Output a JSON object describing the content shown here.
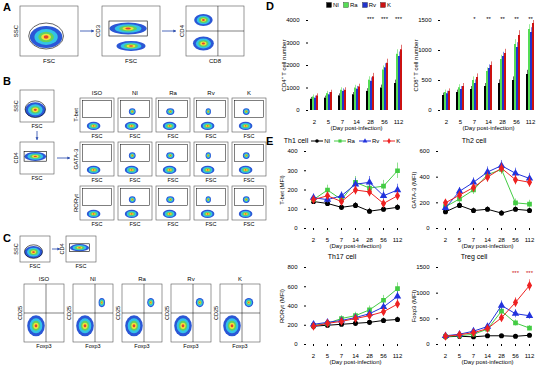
{
  "chart_data": [
    {
      "type": "bar",
      "panel": "D",
      "legend": "top",
      "xlabel": "(Day post-infection)",
      "ylabel": "CD4⁺ T cell number",
      "categories": [
        2,
        5,
        7,
        14,
        28,
        56,
        112
      ],
      "ylim": [
        0,
        4000
      ],
      "yticks": [
        0,
        1000,
        2000,
        3000,
        4000
      ],
      "significance": [
        null,
        null,
        null,
        null,
        "***",
        "***",
        "***"
      ],
      "series": [
        {
          "name": "NI",
          "color": "#000000",
          "values": [
            500,
            550,
            650,
            700,
            850,
            1000,
            1200
          ],
          "errors": [
            80,
            90,
            90,
            100,
            120,
            130,
            150
          ]
        },
        {
          "name": "Ra",
          "color": "#55dd55",
          "values": [
            600,
            750,
            900,
            1000,
            1350,
            1800,
            2500
          ],
          "errors": [
            90,
            100,
            110,
            120,
            150,
            180,
            200
          ]
        },
        {
          "name": "Rv",
          "color": "#2233cc",
          "values": [
            550,
            700,
            850,
            950,
            1300,
            1900,
            2400
          ],
          "errors": [
            90,
            100,
            110,
            120,
            150,
            180,
            200
          ]
        },
        {
          "name": "K",
          "color": "#cc1111",
          "values": [
            650,
            800,
            900,
            1050,
            1500,
            2100,
            2700
          ],
          "errors": [
            90,
            100,
            110,
            120,
            150,
            180,
            200
          ]
        }
      ]
    },
    {
      "type": "bar",
      "xlabel": "(Day post-infection)",
      "ylabel": "CD8⁺ T cell number",
      "categories": [
        2,
        5,
        7,
        14,
        28,
        56,
        112
      ],
      "ylim": [
        0,
        1500
      ],
      "yticks": [
        0,
        500,
        1000,
        1500
      ],
      "significance": [
        null,
        null,
        "*",
        "**",
        "**",
        "**",
        "**"
      ],
      "series": [
        {
          "name": "NI",
          "color": "#000000",
          "values": [
            250,
            300,
            350,
            400,
            450,
            500,
            600
          ],
          "errors": [
            40,
            40,
            50,
            50,
            60,
            60,
            70
          ]
        },
        {
          "name": "Ra",
          "color": "#55dd55",
          "values": [
            300,
            380,
            500,
            650,
            850,
            1100,
            1350
          ],
          "errors": [
            40,
            50,
            60,
            60,
            70,
            80,
            80
          ]
        },
        {
          "name": "Rv",
          "color": "#2233cc",
          "values": [
            280,
            350,
            450,
            700,
            900,
            1050,
            1300
          ],
          "errors": [
            40,
            50,
            60,
            60,
            70,
            80,
            80
          ]
        },
        {
          "name": "K",
          "color": "#cc1111",
          "values": [
            320,
            400,
            550,
            750,
            950,
            1250,
            1450
          ],
          "errors": [
            40,
            50,
            60,
            60,
            70,
            80,
            50
          ]
        }
      ]
    },
    {
      "type": "line",
      "panel": "E",
      "legend": "top",
      "title": "Th1 cell",
      "xlabel": "(Day post-infection)",
      "ylabel": "T-bet (MFI)",
      "categories": [
        2,
        5,
        7,
        14,
        28,
        56,
        112
      ],
      "ylim": [
        0,
        400
      ],
      "yticks": [
        0,
        100,
        200,
        300,
        400
      ],
      "series": [
        {
          "name": "NI",
          "color": "#000000",
          "marker": "circle",
          "values": [
            140,
            130,
            110,
            120,
            90,
            100,
            110
          ],
          "errors": [
            15,
            15,
            15,
            15,
            15,
            15,
            15
          ]
        },
        {
          "name": "Ra",
          "color": "#44cc44",
          "marker": "square",
          "values": [
            150,
            200,
            150,
            240,
            210,
            220,
            300
          ],
          "errors": [
            20,
            25,
            20,
            30,
            25,
            30,
            40
          ]
        },
        {
          "name": "Rv",
          "color": "#2233dd",
          "marker": "triangle",
          "values": [
            160,
            150,
            170,
            230,
            240,
            170,
            200
          ],
          "errors": [
            20,
            20,
            20,
            30,
            30,
            25,
            30
          ]
        },
        {
          "name": "K",
          "color": "#ee2222",
          "marker": "diamond",
          "values": [
            150,
            170,
            140,
            200,
            190,
            130,
            170
          ],
          "errors": [
            20,
            20,
            20,
            25,
            25,
            20,
            25
          ]
        }
      ]
    },
    {
      "type": "line",
      "title": "Th2  cell",
      "xlabel": "(Day post-infection)",
      "ylabel": "GATA-3 (MFI)",
      "categories": [
        2,
        5,
        7,
        14,
        28,
        56,
        112
      ],
      "ylim": [
        0,
        600
      ],
      "yticks": [
        0,
        200,
        400,
        600
      ],
      "series": [
        {
          "name": "NI",
          "color": "#000000",
          "marker": "circle",
          "values": [
            130,
            180,
            140,
            150,
            120,
            150,
            140
          ],
          "errors": [
            20,
            20,
            20,
            20,
            20,
            20,
            20
          ]
        },
        {
          "name": "Ra",
          "color": "#44cc44",
          "marker": "square",
          "values": [
            170,
            230,
            300,
            420,
            460,
            200,
            190
          ],
          "errors": [
            25,
            30,
            35,
            40,
            40,
            30,
            30
          ]
        },
        {
          "name": "Rv",
          "color": "#2233dd",
          "marker": "triangle",
          "values": [
            160,
            290,
            360,
            440,
            490,
            430,
            390
          ],
          "errors": [
            25,
            30,
            35,
            40,
            40,
            40,
            40
          ]
        },
        {
          "name": "K",
          "color": "#ee2222",
          "marker": "diamond",
          "values": [
            200,
            260,
            320,
            400,
            470,
            380,
            360
          ],
          "errors": [
            25,
            30,
            35,
            40,
            40,
            40,
            40
          ]
        }
      ]
    },
    {
      "type": "line",
      "title": "Th17 cell",
      "xlabel": "(Day post-infection)",
      "ylabel": "RORγt (MFI)",
      "categories": [
        2,
        5,
        7,
        14,
        28,
        56,
        112
      ],
      "ylim": [
        0,
        800
      ],
      "yticks": [
        0,
        200,
        400,
        600,
        800
      ],
      "series": [
        {
          "name": "NI",
          "color": "#000000",
          "marker": "circle",
          "values": [
            190,
            200,
            210,
            220,
            230,
            250,
            260
          ],
          "errors": [
            20,
            20,
            20,
            20,
            25,
            25,
            25
          ]
        },
        {
          "name": "Ra",
          "color": "#44cc44",
          "marker": "square",
          "values": [
            200,
            220,
            270,
            300,
            360,
            460,
            580
          ],
          "errors": [
            25,
            25,
            30,
            35,
            40,
            50,
            60
          ]
        },
        {
          "name": "Rv",
          "color": "#2233dd",
          "marker": "triangle",
          "values": [
            210,
            230,
            250,
            280,
            320,
            390,
            500
          ],
          "errors": [
            25,
            25,
            30,
            35,
            40,
            45,
            50
          ]
        },
        {
          "name": "K",
          "color": "#ee2222",
          "marker": "diamond",
          "values": [
            190,
            220,
            240,
            270,
            300,
            340,
            420
          ],
          "errors": [
            25,
            25,
            30,
            30,
            35,
            40,
            45
          ]
        }
      ]
    },
    {
      "type": "line",
      "title": "Treg cell",
      "xlabel": "(Day post-infection)",
      "ylabel": "Foxp3 (MFI)",
      "categories": [
        2,
        5,
        7,
        14,
        28,
        56,
        112
      ],
      "ylim": [
        0,
        1500
      ],
      "yticks": [
        0,
        500,
        1000,
        1500
      ],
      "significance": [
        null,
        null,
        null,
        null,
        null,
        "***",
        "***"
      ],
      "series": [
        {
          "name": "NI",
          "color": "#000000",
          "marker": "circle",
          "values": [
            150,
            160,
            150,
            170,
            170,
            160,
            180
          ],
          "errors": [
            20,
            20,
            20,
            20,
            20,
            20,
            20
          ]
        },
        {
          "name": "Ra",
          "color": "#44cc44",
          "marker": "square",
          "values": [
            160,
            170,
            200,
            300,
            650,
            420,
            320
          ],
          "errors": [
            20,
            25,
            30,
            40,
            80,
            60,
            50
          ]
        },
        {
          "name": "Rv",
          "color": "#2233dd",
          "marker": "triangle",
          "values": [
            170,
            200,
            260,
            350,
            760,
            600,
            560
          ],
          "errors": [
            20,
            25,
            30,
            40,
            90,
            80,
            70
          ]
        },
        {
          "name": "K",
          "color": "#ee2222",
          "marker": "diamond",
          "values": [
            160,
            190,
            230,
            310,
            520,
            820,
            1150
          ],
          "errors": [
            20,
            25,
            30,
            40,
            70,
            90,
            110
          ]
        }
      ]
    }
  ],
  "flow_panels": [
    {
      "panel": "A",
      "plots": [
        {
          "x": "FSC",
          "y": "SSC"
        },
        {
          "x": "FSC",
          "y": "CD3"
        },
        {
          "x": "CD8",
          "y": "CD4"
        }
      ]
    },
    {
      "panel": "B",
      "gates": [
        {
          "x": "FSC",
          "y": "SSC"
        },
        {
          "x": "FSC",
          "y": "CD4"
        }
      ],
      "columns": [
        "ISO",
        "NI",
        "Ra",
        "Rv",
        "K"
      ],
      "rows": [
        "T-bet",
        "GATA-3",
        "RORγt"
      ],
      "x": "FSC"
    },
    {
      "panel": "C",
      "gates": [
        {
          "x": "FSC",
          "y": "SSC"
        },
        {
          "x": "FSC",
          "y": "CD4"
        }
      ],
      "columns": [
        "ISO",
        "NI",
        "Ra",
        "Rv",
        "K"
      ],
      "x": "Foxp3",
      "y": "CD25"
    }
  ]
}
